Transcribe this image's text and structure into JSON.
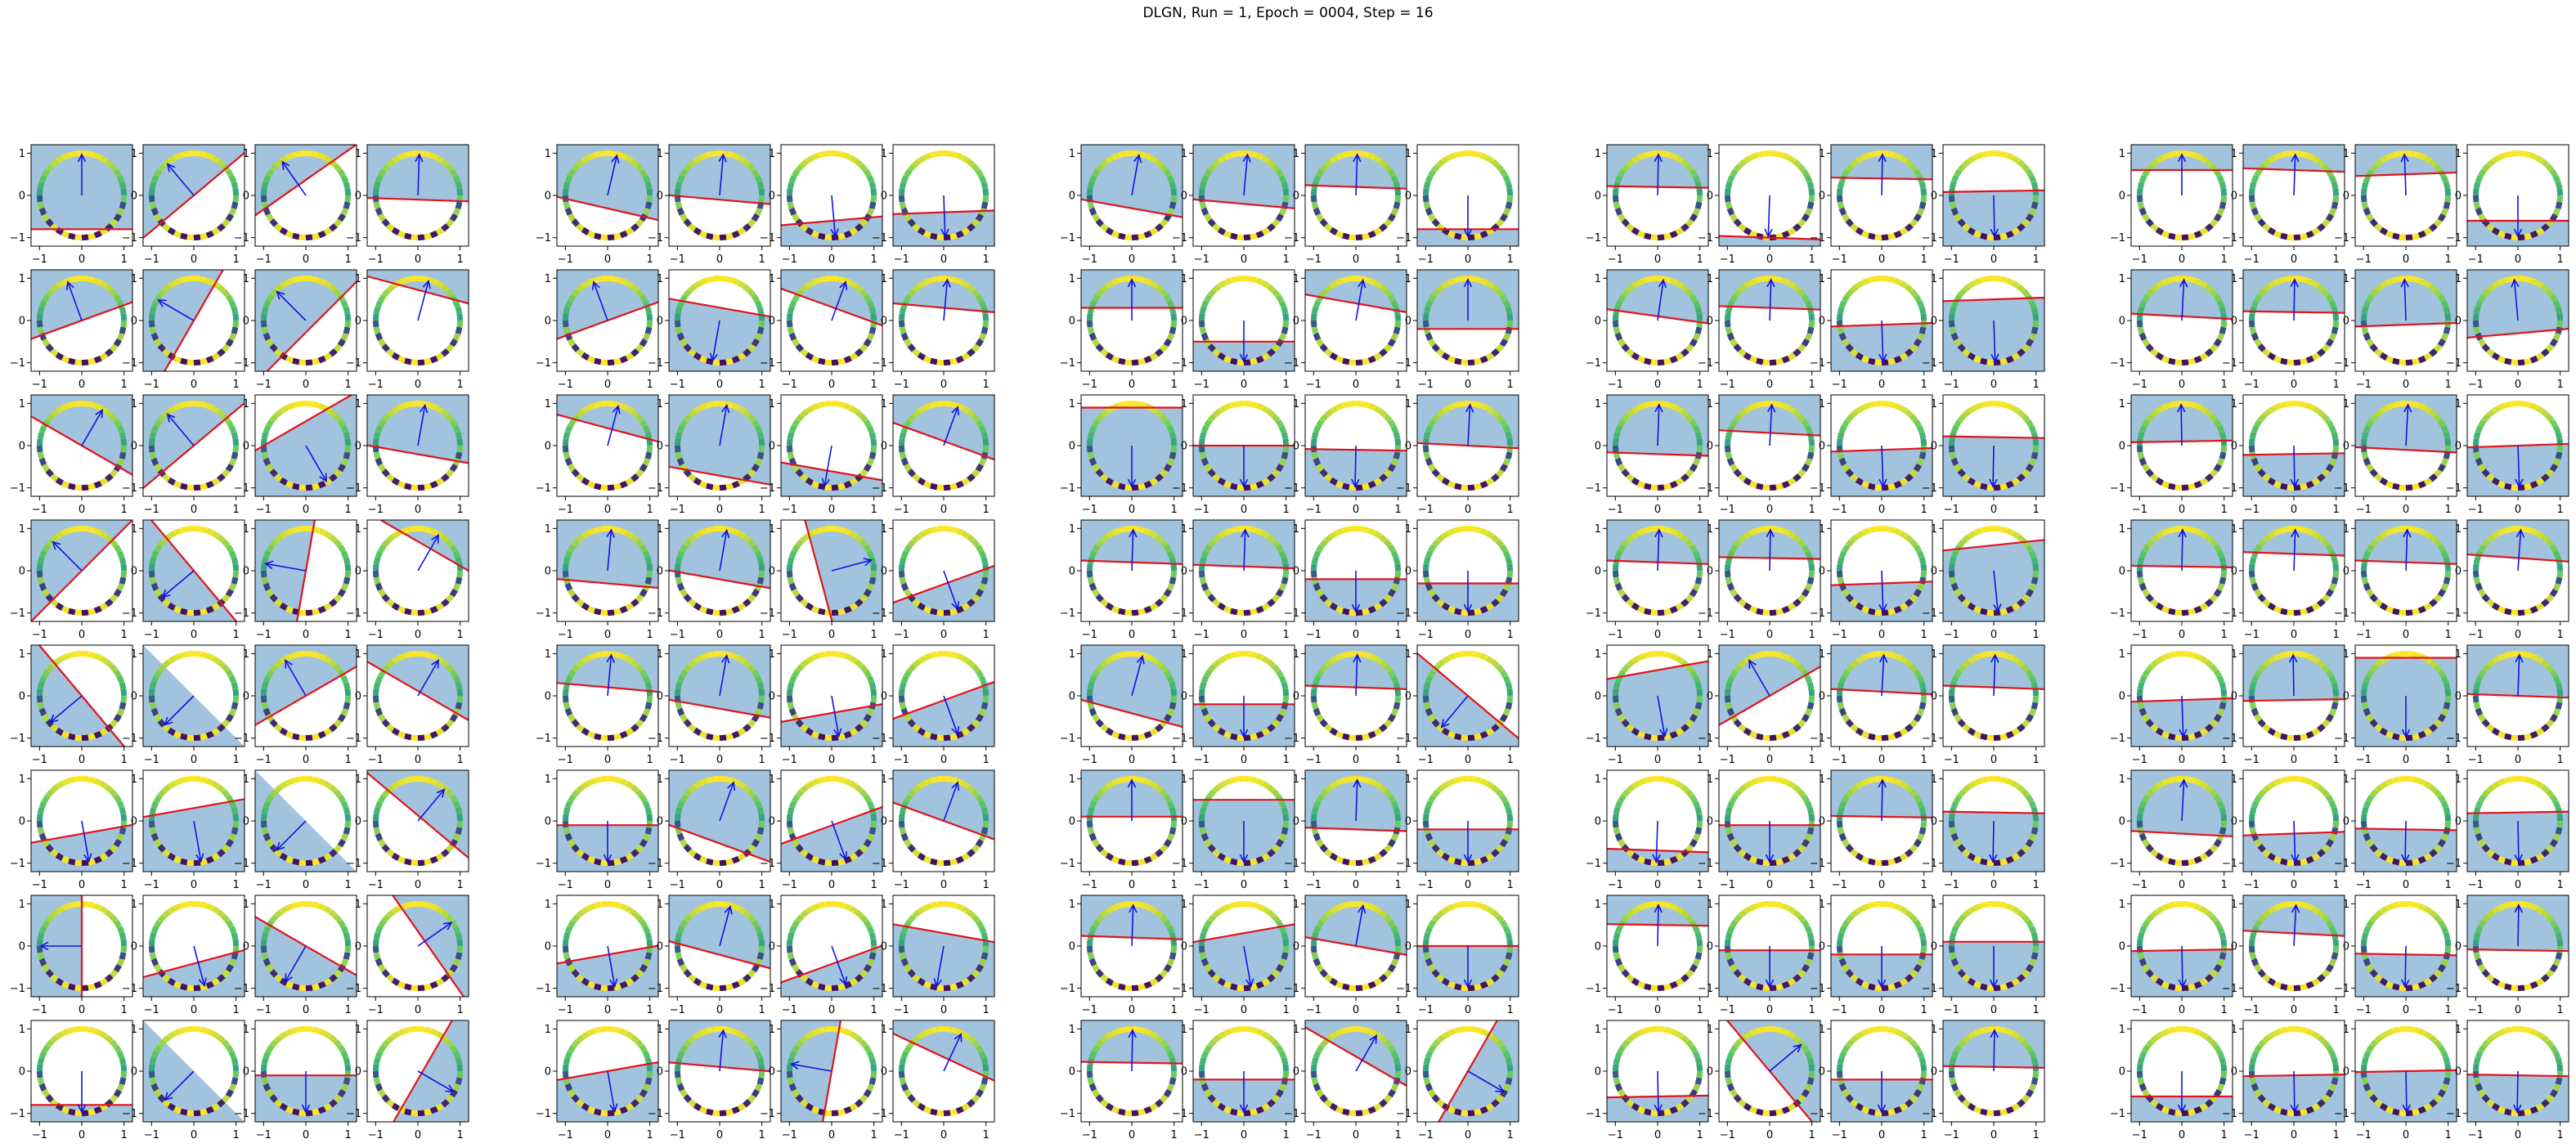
{
  "title": "DLGN, Run = 1, Epoch = 0004, Step = 16",
  "colors": {
    "halfplane_fill": "#7aa9cf",
    "boundary_line": "#e0141c",
    "weight_arrow": "#1212e6",
    "axes_frame": "#000000",
    "circle_colormap": [
      "#440154",
      "#3b528b",
      "#21918c",
      "#5ec962",
      "#fde725"
    ]
  },
  "chart_data": {
    "type": "grid-of-subplots",
    "description_free": true,
    "layout": {
      "groups": 5,
      "rows": 8,
      "cols_per_group": 4
    },
    "axes": {
      "xlim": [
        -1.2,
        1.2
      ],
      "ylim": [
        -1.2,
        1.2
      ],
      "xticks": [
        -1,
        0,
        1
      ],
      "yticks": [
        -1,
        0,
        1
      ],
      "xtick_labels": [
        "−1",
        "0",
        "1"
      ],
      "ytick_labels": [
        "−1",
        "0",
        "1"
      ],
      "grid": false
    },
    "panels": [
      [
        [
          90,
          -0.8
        ],
        [
          130,
          0
        ],
        [
          125,
          0.3
        ],
        [
          88,
          -0.1
        ],
        [
          77,
          -0.3
        ],
        [
          85,
          -0.1
        ],
        [
          -85,
          0.6
        ],
        [
          -88,
          0.4
        ],
        [
          80,
          -0.3
        ],
        [
          85,
          -0.2
        ],
        [
          88,
          0.2
        ],
        [
          -90,
          0.8
        ],
        [
          89,
          0.2
        ],
        [
          -92,
          1.0
        ],
        [
          89,
          0.4
        ],
        [
          -89,
          -0.1
        ],
        [
          90,
          0.6
        ],
        [
          88,
          0.6
        ],
        [
          92,
          0.5
        ],
        [
          -90,
          0.6
        ]
      ],
      [
        [
          110,
          0
        ],
        [
          150,
          0
        ],
        [
          135,
          -0.2
        ],
        [
          75,
          0.7
        ],
        [
          110,
          0
        ],
        [
          -100,
          -0.3
        ],
        [
          70,
          0.3
        ],
        [
          85,
          0.3
        ],
        [
          90,
          0.3
        ],
        [
          -90,
          0.5
        ],
        [
          80,
          0.4
        ],
        [
          90,
          -0.2
        ],
        [
          82,
          0.1
        ],
        [
          88,
          0.3
        ],
        [
          -88,
          0.1
        ],
        [
          -88,
          -0.5
        ],
        [
          87,
          0.1
        ],
        [
          89,
          0.2
        ],
        [
          92,
          -0.1
        ],
        [
          95,
          -0.3
        ]
      ],
      [
        [
          60,
          0
        ],
        [
          130,
          0
        ],
        [
          -60,
          -0.5
        ],
        [
          80,
          -0.2
        ],
        [
          75,
          0.4
        ],
        [
          80,
          -0.7
        ],
        [
          -100,
          0.6
        ],
        [
          70,
          0.1
        ],
        [
          -90,
          -0.9
        ],
        [
          -90,
          0.0
        ],
        [
          -91,
          0.1
        ],
        [
          87,
          0.0
        ],
        [
          88,
          -0.2
        ],
        [
          87,
          0.3
        ],
        [
          -88,
          0.1
        ],
        [
          -91,
          -0.2
        ],
        [
          91,
          0.1
        ],
        [
          -89,
          0.2
        ],
        [
          87,
          -0.1
        ],
        [
          -88,
          0.0
        ]
      ],
      [
        [
          135,
          0
        ],
        [
          -140,
          0
        ],
        [
          170,
          0
        ],
        [
          60,
          0.6
        ],
        [
          85,
          -0.3
        ],
        [
          80,
          -0.2
        ],
        [
          15,
          -0.3
        ],
        [
          -70,
          0.3
        ],
        [
          88,
          0.2
        ],
        [
          88,
          0.1
        ],
        [
          -90,
          0.2
        ],
        [
          -90,
          0.3
        ],
        [
          88,
          0.2
        ],
        [
          89,
          0.3
        ],
        [
          -88,
          0.3
        ],
        [
          -84,
          -0.6
        ],
        [
          89,
          0.1
        ],
        [
          88,
          0.4
        ],
        [
          88,
          0.2
        ],
        [
          86,
          0.3
        ]
      ],
      [
        [
          -140,
          0
        ],
        [
          -135,
          0
        ],
        [
          120,
          0
        ],
        [
          60,
          0.1
        ],
        [
          85,
          0.2
        ],
        [
          80,
          -0.3
        ],
        [
          -80,
          0.4
        ],
        [
          -70,
          0.1
        ],
        [
          75,
          -0.4
        ],
        [
          -90,
          0.2
        ],
        [
          88,
          0.2
        ],
        [
          -130,
          0
        ],
        [
          -80,
          -0.6
        ],
        [
          120,
          0
        ],
        [
          87,
          0.1
        ],
        [
          88,
          0.2
        ],
        [
          -88,
          0.1
        ],
        [
          91,
          -0.1
        ],
        [
          -90,
          -0.9
        ],
        [
          88,
          0.0
        ]
      ],
      [
        [
          -80,
          0.3
        ],
        [
          -80,
          -0.3
        ],
        [
          -135,
          0
        ],
        [
          50,
          0.1
        ],
        [
          -90,
          0.1
        ],
        [
          70,
          -0.5
        ],
        [
          -70,
          0.1
        ],
        [
          70,
          0.0
        ],
        [
          90,
          0.1
        ],
        [
          -90,
          -0.5
        ],
        [
          88,
          -0.2
        ],
        [
          -90,
          0.2
        ],
        [
          -92,
          0.7
        ],
        [
          -90,
          0.1
        ],
        [
          89,
          0.1
        ],
        [
          -91,
          -0.2
        ],
        [
          87,
          -0.3
        ],
        [
          -88,
          0.3
        ],
        [
          -91,
          0.2
        ],
        [
          -89,
          -0.2
        ]
      ],
      [
        [
          180,
          0
        ],
        [
          -75,
          0.4
        ],
        [
          -120,
          0
        ],
        [
          35,
          0.2
        ],
        [
          -80,
          0.2
        ],
        [
          75,
          -0.2
        ],
        [
          -70,
          0.4
        ],
        [
          -100,
          -0.3
        ],
        [
          88,
          0.2
        ],
        [
          -80,
          -0.3
        ],
        [
          80,
          0.0
        ],
        [
          -90,
          0.0
        ],
        [
          89,
          0.5
        ],
        [
          -90,
          0.1
        ],
        [
          -90,
          0.2
        ],
        [
          -90,
          -0.1
        ],
        [
          -89,
          0.1
        ],
        [
          87,
          0.3
        ],
        [
          -91,
          0.2
        ],
        [
          89,
          -0.1
        ]
      ],
      [
        [
          -90,
          0.8
        ],
        [
          -135,
          0
        ],
        [
          -90,
          0.1
        ],
        [
          -30,
          0.1
        ],
        [
          -80,
          0.0
        ],
        [
          85,
          0.1
        ],
        [
          170,
          0
        ],
        [
          65,
          0.3
        ],
        [
          89,
          0.2
        ],
        [
          -90,
          0.2
        ],
        [
          60,
          0.3
        ],
        [
          -30,
          0
        ],
        [
          -89,
          0.6
        ],
        [
          40,
          0
        ],
        [
          -90,
          0.2
        ],
        [
          89,
          0.1
        ],
        [
          -90,
          0.6
        ],
        [
          -89,
          0.1
        ],
        [
          -89,
          0.0
        ],
        [
          -91,
          0.1
        ]
      ]
    ],
    "panel_value_meaning": [
      "arrow_angle_deg",
      "boundary_offset"
    ]
  }
}
